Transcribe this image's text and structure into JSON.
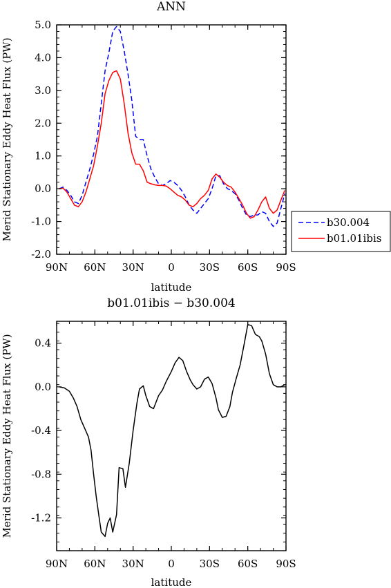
{
  "chart_data": [
    {
      "type": "line",
      "title": "ANN",
      "xlabel": "latitude",
      "ylabel": "Merid Stationary Eddy Heat Flux (PW)",
      "xticks": [
        {
          "v": 90,
          "label": "90N"
        },
        {
          "v": 60,
          "label": "60N"
        },
        {
          "v": 30,
          "label": "30N"
        },
        {
          "v": 0,
          "label": "0"
        },
        {
          "v": -30,
          "label": "30S"
        },
        {
          "v": -60,
          "label": "60S"
        },
        {
          "v": -90,
          "label": "90S"
        }
      ],
      "yticks": [
        {
          "v": 5,
          "label": "5.0"
        },
        {
          "v": 4,
          "label": "4.0"
        },
        {
          "v": 3,
          "label": "3.0"
        },
        {
          "v": 2,
          "label": "2.0"
        },
        {
          "v": 1,
          "label": "1.0"
        },
        {
          "v": 0,
          "label": "0.0"
        },
        {
          "v": -1,
          "label": "-1.0"
        },
        {
          "v": -2,
          "label": "-2.0"
        }
      ],
      "xlim": [
        90,
        -90
      ],
      "ylim": [
        -2,
        5
      ],
      "legend_position": "right",
      "series": [
        {
          "name": "b30.004",
          "color": "#0000ff",
          "dash": "dashed",
          "x": [
            88,
            85,
            82,
            79,
            76,
            73,
            70,
            67,
            64,
            61,
            58,
            55,
            52,
            49,
            46,
            43,
            40,
            37,
            34,
            31,
            28,
            25,
            22,
            19,
            16,
            13,
            10,
            7,
            4,
            1,
            -2,
            -5,
            -8,
            -11,
            -14,
            -17,
            -20,
            -23,
            -26,
            -29,
            -32,
            -35,
            -38,
            -41,
            -44,
            -47,
            -50,
            -53,
            -56,
            -59,
            -62,
            -65,
            -68,
            -71,
            -74,
            -77,
            -80,
            -83,
            -86,
            -89
          ],
          "y": [
            0.0,
            0.05,
            -0.05,
            -0.2,
            -0.4,
            -0.45,
            -0.2,
            0.2,
            0.6,
            1.05,
            1.6,
            2.6,
            3.6,
            4.15,
            4.8,
            4.95,
            4.8,
            4.2,
            3.5,
            2.7,
            1.6,
            1.5,
            1.5,
            1.0,
            0.6,
            0.35,
            0.15,
            0.1,
            0.15,
            0.25,
            0.2,
            0.1,
            -0.05,
            -0.25,
            -0.5,
            -0.65,
            -0.75,
            -0.6,
            -0.45,
            -0.3,
            0.0,
            0.4,
            0.4,
            0.15,
            0.0,
            -0.05,
            -0.15,
            -0.35,
            -0.6,
            -0.8,
            -0.85,
            -0.8,
            -0.8,
            -0.7,
            -0.75,
            -1.0,
            -1.15,
            -1.05,
            -0.6,
            -0.15
          ]
        },
        {
          "name": "b01.01ibis",
          "color": "#ff0000",
          "dash": "solid",
          "x": [
            88,
            85,
            82,
            79,
            76,
            73,
            70,
            67,
            64,
            61,
            58,
            55,
            52,
            49,
            46,
            43,
            40,
            37,
            34,
            31,
            28,
            25,
            22,
            19,
            16,
            13,
            10,
            7,
            4,
            1,
            -2,
            -5,
            -8,
            -11,
            -14,
            -17,
            -20,
            -23,
            -26,
            -29,
            -32,
            -35,
            -38,
            -41,
            -44,
            -47,
            -50,
            -53,
            -56,
            -59,
            -62,
            -65,
            -68,
            -71,
            -74,
            -77,
            -80,
            -83,
            -86,
            -89
          ],
          "y": [
            0.0,
            0.02,
            -0.1,
            -0.3,
            -0.5,
            -0.55,
            -0.4,
            -0.1,
            0.3,
            0.7,
            1.3,
            2.0,
            2.9,
            3.3,
            3.55,
            3.6,
            3.35,
            2.6,
            1.7,
            1.1,
            0.75,
            0.75,
            0.55,
            0.2,
            0.15,
            0.12,
            0.1,
            0.1,
            0.08,
            0.0,
            -0.1,
            -0.2,
            -0.25,
            -0.35,
            -0.5,
            -0.55,
            -0.45,
            -0.3,
            -0.2,
            -0.05,
            0.3,
            0.45,
            0.35,
            0.2,
            0.1,
            0.05,
            -0.1,
            -0.3,
            -0.5,
            -0.75,
            -0.9,
            -0.85,
            -0.65,
            -0.4,
            -0.25,
            -0.6,
            -0.75,
            -0.65,
            -0.35,
            -0.05
          ]
        }
      ]
    },
    {
      "type": "line",
      "title": "b01.01ibis − b30.004",
      "xlabel": "latitude",
      "ylabel": "Merid Stationary Eddy Heat Flux (PW)",
      "xticks": [
        {
          "v": 90,
          "label": "90N"
        },
        {
          "v": 60,
          "label": "60N"
        },
        {
          "v": 30,
          "label": "30N"
        },
        {
          "v": 0,
          "label": "0"
        },
        {
          "v": -30,
          "label": "30S"
        },
        {
          "v": -60,
          "label": "60S"
        },
        {
          "v": -90,
          "label": "90S"
        }
      ],
      "yticks": [
        {
          "v": 0.4,
          "label": "0.4"
        },
        {
          "v": 0.0,
          "label": "0.0"
        },
        {
          "v": -0.4,
          "label": "-0.4"
        },
        {
          "v": -0.8,
          "label": "-0.8"
        },
        {
          "v": -1.2,
          "label": "-1.2"
        }
      ],
      "xlim": [
        90,
        -90
      ],
      "ylim": [
        -1.5,
        0.6
      ],
      "series": [
        {
          "color": "#000000",
          "dash": "solid",
          "x": [
            88,
            84,
            80,
            77,
            74,
            71,
            68,
            65,
            63,
            61,
            59,
            57,
            55,
            52,
            50,
            48,
            46,
            43,
            41,
            38,
            36,
            33,
            30,
            27,
            25,
            22,
            20,
            17,
            14,
            10,
            7,
            4,
            0,
            -3,
            -6,
            -9,
            -12,
            -15,
            -17,
            -20,
            -23,
            -26,
            -29,
            -32,
            -35,
            -37,
            -40,
            -43,
            -46,
            -48,
            -51,
            -54,
            -57,
            -60,
            -63,
            -66,
            -69,
            -71,
            -74,
            -77,
            -80,
            -83,
            -86,
            -89
          ],
          "y": [
            0.0,
            -0.01,
            -0.04,
            -0.1,
            -0.18,
            -0.3,
            -0.38,
            -0.46,
            -0.58,
            -0.8,
            -1.0,
            -1.17,
            -1.33,
            -1.37,
            -1.25,
            -1.2,
            -1.33,
            -1.17,
            -0.74,
            -0.75,
            -0.92,
            -0.7,
            -0.4,
            -0.15,
            -0.02,
            0.01,
            -0.08,
            -0.18,
            -0.2,
            -0.08,
            -0.03,
            0.05,
            0.14,
            0.22,
            0.27,
            0.24,
            0.14,
            0.06,
            0.02,
            -0.02,
            0.0,
            0.07,
            0.09,
            0.03,
            -0.1,
            -0.21,
            -0.28,
            -0.27,
            -0.18,
            -0.05,
            0.08,
            0.2,
            0.38,
            0.57,
            0.56,
            0.48,
            0.46,
            0.42,
            0.3,
            0.12,
            0.02,
            0.0,
            0.0,
            0.02
          ]
        }
      ]
    }
  ]
}
